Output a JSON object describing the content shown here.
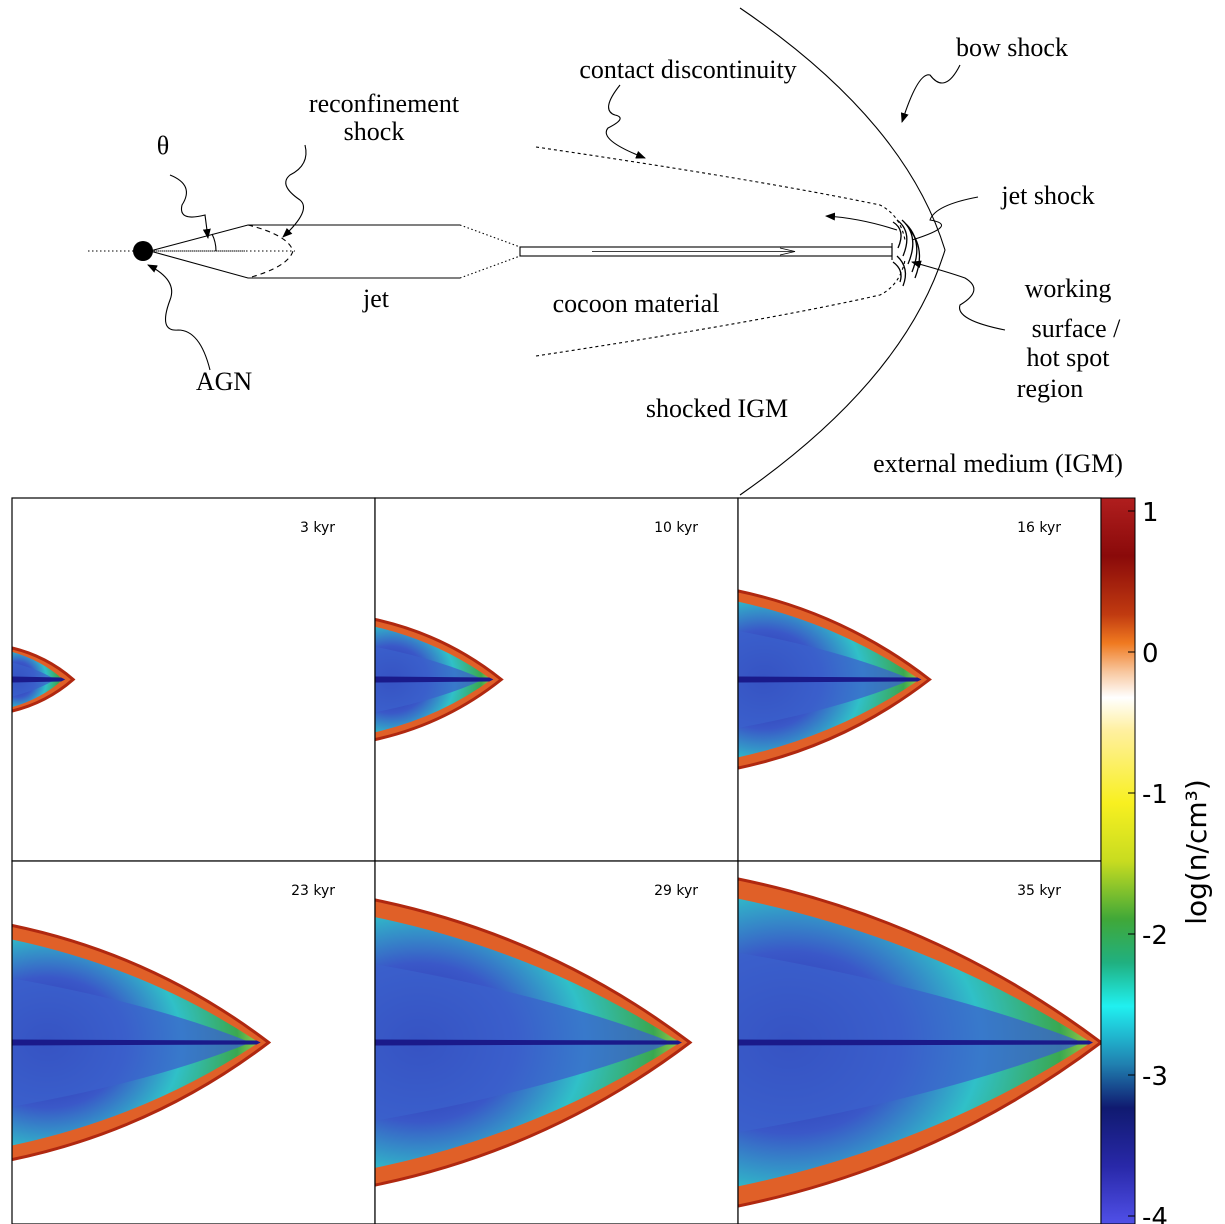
{
  "diagram": {
    "labels": {
      "theta": "θ",
      "reconfinement_1": "reconfinement",
      "reconfinement_2": "shock",
      "jet": "jet",
      "agn": "AGN",
      "contact_discontinuity": "contact discontinuity",
      "bow_shock": "bow shock",
      "jet_shock": "jet shock",
      "cocoon_material": "cocoon material",
      "working_1": "working",
      "working_2": "surface /",
      "working_3": "hot spot",
      "working_4": "region",
      "shocked_igm": "shocked IGM",
      "external_medium": "external medium (IGM)"
    }
  },
  "panels": [
    {
      "time": "3 kyr",
      "extent": 0.12
    },
    {
      "time": "10 kyr",
      "extent": 0.31
    },
    {
      "time": "16 kyr",
      "extent": 0.5
    },
    {
      "time": "23 kyr",
      "extent": 0.69
    },
    {
      "time": "29 kyr",
      "extent": 0.86
    },
    {
      "time": "35 kyr",
      "extent": 1.0
    }
  ],
  "colorbar": {
    "label": "log(n/cm³)",
    "ticks": [
      "1",
      "0",
      "-1",
      "-2",
      "-3",
      "-4"
    ],
    "colors": [
      "#b01e1e",
      "#8a0a0a",
      "#c03a10",
      "#f07a20",
      "#f8c8a0",
      "#ffffff",
      "#fff0a0",
      "#f8f020",
      "#d4e020",
      "#7cc030",
      "#20a040",
      "#20c8a0",
      "#20f0f0",
      "#2098c0",
      "#101880",
      "#3030b0",
      "#4848e0"
    ]
  }
}
